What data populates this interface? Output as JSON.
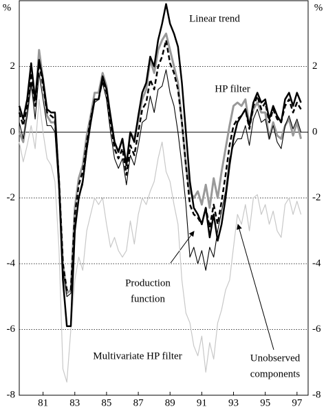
{
  "chart_data": {
    "type": "line",
    "y_label": "%",
    "x": [
      1980,
      1980.25,
      1980.5,
      1980.75,
      1981,
      1981.25,
      1981.5,
      1981.75,
      1982,
      1982.25,
      1982.5,
      1982.75,
      1983,
      1983.25,
      1983.5,
      1983.75,
      1984,
      1984.25,
      1984.5,
      1984.75,
      1985,
      1985.25,
      1985.5,
      1985.75,
      1986,
      1986.25,
      1986.5,
      1986.75,
      1987,
      1987.25,
      1987.5,
      1987.75,
      1988,
      1988.25,
      1988.5,
      1988.75,
      1989,
      1989.25,
      1989.5,
      1989.75,
      1990,
      1990.25,
      1990.5,
      1990.75,
      1991,
      1991.25,
      1991.5,
      1991.75,
      1992,
      1992.25,
      1992.5,
      1992.75,
      1993,
      1993.25,
      1993.5,
      1993.75,
      1994,
      1994.25,
      1994.5,
      1994.75,
      1995,
      1995.25,
      1995.5,
      1995.75,
      1996,
      1996.25,
      1996.5,
      1996.75,
      1997,
      1997.25,
      1997.5,
      1997.75
    ],
    "xlim": [
      1980,
      1998.2
    ],
    "xticks": [
      {
        "value": 1981.5,
        "label": "81"
      },
      {
        "value": 1983.5,
        "label": "83"
      },
      {
        "value": 1985.5,
        "label": "85"
      },
      {
        "value": 1987.5,
        "label": "87"
      },
      {
        "value": 1989.5,
        "label": "89"
      },
      {
        "value": 1991.5,
        "label": "91"
      },
      {
        "value": 1993.5,
        "label": "93"
      },
      {
        "value": 1995.5,
        "label": "95"
      },
      {
        "value": 1997.5,
        "label": "97"
      }
    ],
    "ylim": [
      -8,
      4
    ],
    "yticks": [
      -8,
      -6,
      -4,
      -2,
      0,
      2
    ],
    "grid": true,
    "grid_style": "dotted",
    "zero_line": true,
    "series": [
      {
        "name": "Multivariate HP filter",
        "color": "#c8c8c8",
        "line_width": 1.2,
        "dashed": false,
        "values": [
          -0.3,
          -0.9,
          -0.4,
          0.2,
          -0.5,
          1.0,
          0.0,
          -0.8,
          -1.0,
          -1.5,
          -3.5,
          -7.2,
          -7.6,
          -6.0,
          -4.5,
          -3.8,
          -4.2,
          -3.0,
          -2.5,
          -2.0,
          -2.2,
          -2.0,
          -2.8,
          -3.5,
          -3.2,
          -3.6,
          -3.8,
          -3.6,
          -2.7,
          -3.4,
          -2.5,
          -2.0,
          -2.2,
          -1.8,
          -1.5,
          -0.8,
          -0.3,
          -1.2,
          -1.5,
          -2.2,
          -2.8,
          -4.5,
          -5.5,
          -5.8,
          -6.5,
          -6.8,
          -6.2,
          -7.3,
          -6.4,
          -6.9,
          -5.8,
          -5.4,
          -4.8,
          -4.5,
          -3.5,
          -2.5,
          -2.8,
          -2.2,
          -3.0,
          -2.0,
          -1.9,
          -2.5,
          -2.2,
          -2.8,
          -2.4,
          -3.0,
          -3.2,
          -2.2,
          -2.0,
          -2.5,
          -2.1,
          -2.5
        ]
      },
      {
        "name": "Unobserved components",
        "color": "#999999",
        "line_width": 3,
        "dashed": false,
        "values": [
          0.0,
          -0.3,
          0.6,
          1.5,
          0.8,
          2.5,
          1.6,
          0.5,
          0.3,
          0.3,
          -1.5,
          -4.0,
          -4.9,
          -4.8,
          -2.3,
          -1.4,
          -1.0,
          -0.1,
          0.5,
          1.2,
          1.2,
          1.8,
          1.4,
          0.4,
          -0.3,
          -0.6,
          -0.2,
          -1.0,
          0.0,
          -0.2,
          0.4,
          1.0,
          1.3,
          2.2,
          1.8,
          2.5,
          2.8,
          3.0,
          2.5,
          2.0,
          1.5,
          0.3,
          -1.0,
          -1.8,
          -2.0,
          -1.8,
          -2.2,
          -1.6,
          -2.3,
          -1.4,
          -2.0,
          -1.2,
          -0.5,
          0.2,
          0.8,
          0.9,
          0.8,
          1.0,
          0.2,
          0.7,
          0.9,
          0.6,
          0.6,
          -0.2,
          0.3,
          -0.1,
          -0.2,
          0.2,
          0.4,
          -0.1,
          0.3,
          -0.2
        ]
      },
      {
        "name": "Production function",
        "color": "#000000",
        "line_width": 1.1,
        "dashed": false,
        "values": [
          0.3,
          -0.2,
          0.5,
          1.5,
          0.4,
          1.8,
          1.0,
          0.2,
          0.2,
          0.0,
          -1.8,
          -4.2,
          -5.0,
          -4.9,
          -2.8,
          -2.0,
          -1.6,
          -0.6,
          0.2,
          0.9,
          1.0,
          1.5,
          1.0,
          0.0,
          -0.8,
          -1.1,
          -0.8,
          -1.6,
          -0.7,
          -1.0,
          -0.4,
          0.3,
          0.4,
          1.1,
          0.6,
          1.3,
          1.4,
          1.9,
          1.2,
          0.8,
          0.0,
          -1.0,
          -2.2,
          -3.8,
          -3.5,
          -4.0,
          -3.6,
          -4.2,
          -3.5,
          -3.8,
          -3.0,
          -2.4,
          -1.8,
          -0.8,
          -0.4,
          -0.2,
          -0.2,
          0.2,
          -0.4,
          0.4,
          0.7,
          0.3,
          0.4,
          -0.2,
          0.2,
          -0.3,
          -0.5,
          0.2,
          0.5,
          0.1,
          0.4,
          0.0
        ]
      },
      {
        "name": "HP filter",
        "color": "#000000",
        "line_width": 2.5,
        "dashed": true,
        "values": [
          0.6,
          0.2,
          0.8,
          1.8,
          0.8,
          2.1,
          1.4,
          0.6,
          0.5,
          0.4,
          -1.4,
          -4.0,
          -4.8,
          -4.8,
          -2.5,
          -1.6,
          -1.2,
          -0.3,
          0.4,
          1.0,
          1.0,
          1.6,
          1.2,
          0.3,
          -0.5,
          -0.8,
          -0.5,
          -1.3,
          -0.4,
          -0.7,
          0.0,
          0.7,
          0.9,
          1.6,
          1.3,
          2.0,
          2.3,
          2.8,
          2.1,
          1.8,
          1.3,
          0.3,
          -1.0,
          -2.2,
          -2.5,
          -2.6,
          -2.8,
          -2.3,
          -2.9,
          -2.2,
          -2.8,
          -2.1,
          -1.3,
          -0.4,
          0.2,
          0.4,
          0.5,
          0.7,
          0.1,
          0.8,
          1.1,
          0.7,
          0.9,
          0.3,
          0.7,
          0.4,
          0.3,
          0.8,
          1.0,
          0.6,
          0.9,
          0.7
        ]
      },
      {
        "name": "Linear trend",
        "color": "#000000",
        "line_width": 2.5,
        "dashed": false,
        "values": [
          0.8,
          0.4,
          1.0,
          2.1,
          1.0,
          2.2,
          1.6,
          0.7,
          0.6,
          0.6,
          -1.5,
          -4.5,
          -5.9,
          -5.9,
          -3.0,
          -2.0,
          -1.5,
          -0.5,
          0.3,
          1.0,
          1.0,
          1.7,
          1.3,
          0.5,
          -0.3,
          -0.6,
          -0.2,
          -1.0,
          0.0,
          -0.3,
          0.5,
          1.2,
          1.5,
          2.3,
          2.0,
          2.8,
          3.3,
          3.9,
          3.3,
          3.0,
          2.6,
          1.5,
          0.0,
          -1.5,
          -2.3,
          -2.5,
          -2.8,
          -2.3,
          -3.2,
          -2.5,
          -3.3,
          -2.8,
          -2.0,
          -1.0,
          -0.2,
          0.3,
          0.5,
          0.7,
          0.2,
          0.9,
          1.2,
          0.9,
          1.0,
          0.4,
          0.8,
          0.5,
          0.3,
          1.0,
          1.2,
          0.8,
          1.2,
          0.9
        ]
      }
    ],
    "annotations": [
      {
        "lines": [
          "Linear trend"
        ]
      },
      {
        "lines": [
          "HP filter"
        ]
      },
      {
        "lines": [
          "Production",
          "function"
        ]
      },
      {
        "lines": [
          "Multivariate HP filter"
        ]
      },
      {
        "lines": [
          "Unobserved",
          "components"
        ]
      }
    ]
  }
}
